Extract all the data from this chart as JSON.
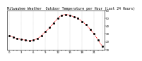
{
  "title": "Milwaukee Weather  Outdoor Temperature per Hour (Last 24 Hours)",
  "hours": [
    0,
    1,
    2,
    3,
    4,
    5,
    6,
    7,
    8,
    9,
    10,
    11,
    12,
    13,
    14,
    15,
    16,
    17,
    18,
    19,
    20,
    21,
    22,
    23
  ],
  "temps": [
    28,
    26,
    24,
    23,
    22,
    21,
    22,
    24,
    28,
    33,
    38,
    44,
    50,
    54,
    55,
    54,
    52,
    50,
    46,
    42,
    36,
    30,
    22,
    14
  ],
  "line_color": "#ff0000",
  "marker_color": "#000000",
  "bg_color": "#ffffff",
  "grid_color": "#888888",
  "ylim_min": 10,
  "ylim_max": 60,
  "yticks": [
    10,
    20,
    30,
    40,
    50,
    60
  ],
  "title_fontsize": 3.5,
  "tick_fontsize": 2.8,
  "grid_xticks": [
    0,
    3,
    6,
    9,
    12,
    15,
    18,
    21,
    23
  ]
}
